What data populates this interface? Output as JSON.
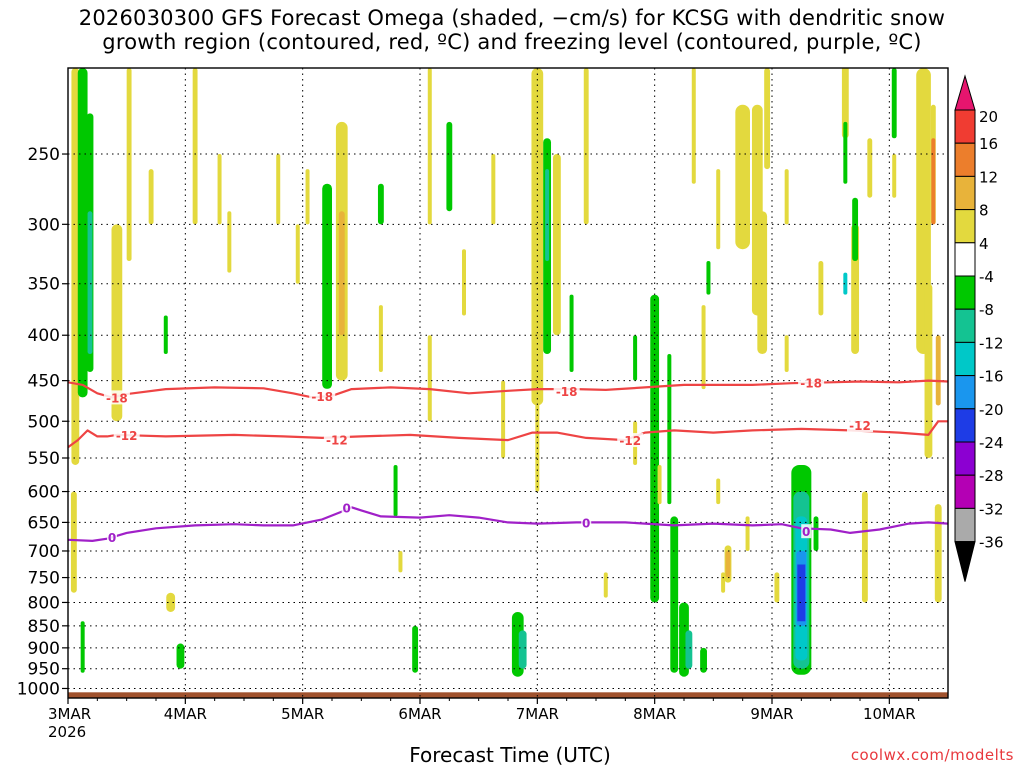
{
  "title": {
    "line1": "2026030300 GFS Forecast Omega (shaded, −cm/s) for KCSG with dendritic snow",
    "line2": "growth region (contoured, red, ºC) and freezing level (contoured, purple, ºC)"
  },
  "x_axis_title": "Forecast Time (UTC)",
  "credit": "coolwx.com/modelts",
  "chart_data": {
    "type": "heatmap",
    "x_axis": {
      "unit": "hours since 2026-03-03 00 UTC",
      "range": [
        0,
        180
      ],
      "ticks": [
        {
          "hour": 0,
          "label": "3MAR",
          "sublabel": "2026"
        },
        {
          "hour": 24,
          "label": "4MAR"
        },
        {
          "hour": 48,
          "label": "5MAR"
        },
        {
          "hour": 72,
          "label": "6MAR"
        },
        {
          "hour": 96,
          "label": "7MAR"
        },
        {
          "hour": 120,
          "label": "8MAR"
        },
        {
          "hour": 144,
          "label": "9MAR"
        },
        {
          "hour": 168,
          "label": "10MAR"
        }
      ]
    },
    "y_axis": {
      "unit": "hPa",
      "scale": "log",
      "range": [
        1025,
        200
      ],
      "ticks": [
        250,
        300,
        350,
        400,
        450,
        500,
        550,
        600,
        650,
        700,
        750,
        800,
        850,
        900,
        950,
        1000
      ]
    },
    "grid": true,
    "colorbar": {
      "labels": [
        "20",
        "16",
        "12",
        "8",
        "4",
        "-4",
        "-8",
        "-12",
        "-16",
        "-20",
        "-24",
        "-28",
        "-32",
        "-36"
      ],
      "colors": [
        "#e6156e",
        "#f03c32",
        "#ec7e2c",
        "#e8b33a",
        "#e3d93e",
        "#ffffff",
        "#00c800",
        "#14c392",
        "#00c8c8",
        "#1a96ee",
        "#1e3ce6",
        "#8c00d2",
        "#b400b4",
        "#aaaaaa",
        "#000000"
      ]
    },
    "ground": {
      "color": "#a0522d",
      "top_hPa": 1010
    },
    "contours": [
      {
        "name": "-18",
        "color": "#ee4444",
        "label": "-18",
        "points": [
          [
            0,
            452
          ],
          [
            3,
            455
          ],
          [
            6,
            465
          ],
          [
            9,
            470
          ],
          [
            12,
            466
          ],
          [
            20,
            460
          ],
          [
            30,
            458
          ],
          [
            40,
            459
          ],
          [
            46,
            465
          ],
          [
            50,
            470
          ],
          [
            54,
            468
          ],
          [
            58,
            460
          ],
          [
            66,
            458
          ],
          [
            74,
            460
          ],
          [
            82,
            465
          ],
          [
            90,
            462
          ],
          [
            96,
            460
          ],
          [
            104,
            460
          ],
          [
            110,
            461
          ],
          [
            118,
            458
          ],
          [
            126,
            455
          ],
          [
            140,
            455
          ],
          [
            148,
            453
          ],
          [
            156,
            452
          ],
          [
            162,
            451
          ],
          [
            170,
            452
          ],
          [
            176,
            450
          ],
          [
            180,
            451
          ]
        ],
        "label_positions": [
          [
            10,
            470
          ],
          [
            52,
            468
          ],
          [
            102,
            462
          ],
          [
            152,
            452
          ]
        ]
      },
      {
        "name": "-12",
        "color": "#ee4444",
        "label": "-12",
        "points": [
          [
            0,
            535
          ],
          [
            2,
            525
          ],
          [
            4,
            512
          ],
          [
            6,
            520
          ],
          [
            8,
            520
          ],
          [
            10,
            518
          ],
          [
            20,
            520
          ],
          [
            34,
            518
          ],
          [
            44,
            520
          ],
          [
            52,
            522
          ],
          [
            60,
            520
          ],
          [
            70,
            518
          ],
          [
            80,
            522
          ],
          [
            90,
            525
          ],
          [
            95,
            515
          ],
          [
            100,
            515
          ],
          [
            106,
            522
          ],
          [
            114,
            525
          ],
          [
            118,
            515
          ],
          [
            124,
            512
          ],
          [
            132,
            515
          ],
          [
            140,
            512
          ],
          [
            150,
            510
          ],
          [
            160,
            512
          ],
          [
            170,
            515
          ],
          [
            176,
            518
          ],
          [
            178,
            500
          ],
          [
            180,
            500
          ]
        ],
        "label_positions": [
          [
            12,
            518
          ],
          [
            55,
            524
          ],
          [
            115,
            525
          ],
          [
            162,
            505
          ]
        ]
      },
      {
        "name": "0",
        "color": "#a020c8",
        "label": "0",
        "points": [
          [
            0,
            680
          ],
          [
            5,
            682
          ],
          [
            8,
            678
          ],
          [
            12,
            668
          ],
          [
            18,
            660
          ],
          [
            26,
            655
          ],
          [
            34,
            653
          ],
          [
            40,
            655
          ],
          [
            46,
            655
          ],
          [
            52,
            645
          ],
          [
            56,
            632
          ],
          [
            58,
            625
          ],
          [
            60,
            630
          ],
          [
            64,
            640
          ],
          [
            72,
            642
          ],
          [
            78,
            638
          ],
          [
            84,
            642
          ],
          [
            90,
            650
          ],
          [
            96,
            652
          ],
          [
            104,
            650
          ],
          [
            110,
            650
          ],
          [
            114,
            650
          ],
          [
            118,
            652
          ],
          [
            124,
            655
          ],
          [
            132,
            652
          ],
          [
            140,
            655
          ],
          [
            146,
            653
          ],
          [
            150,
            660
          ],
          [
            156,
            662
          ],
          [
            160,
            668
          ],
          [
            166,
            662
          ],
          [
            172,
            652
          ],
          [
            176,
            650
          ],
          [
            180,
            652
          ]
        ],
        "label_positions": [
          [
            9,
            675
          ],
          [
            57,
            625
          ],
          [
            106,
            650
          ],
          [
            151,
            665
          ]
        ]
      }
    ]
  }
}
